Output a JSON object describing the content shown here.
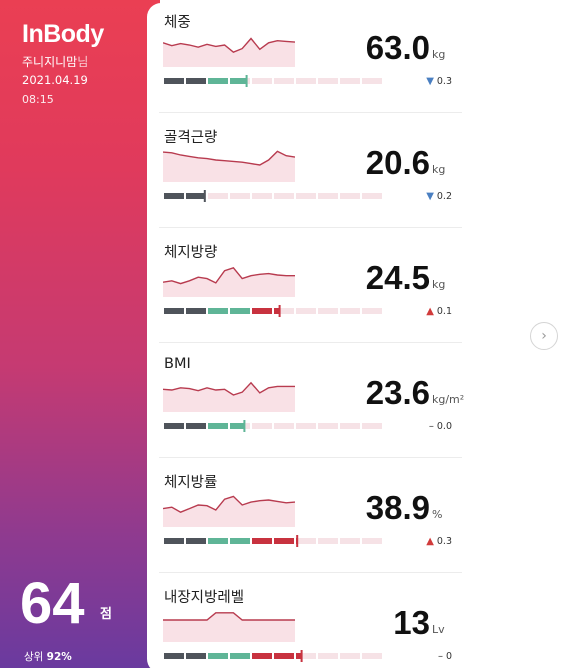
{
  "sidebar": {
    "logo": "InBody",
    "user_name": "주니지니맘",
    "user_honorific": "님",
    "date": "2021.04.19",
    "time": "08:15",
    "score": "64",
    "score_unit": "점",
    "rank_label": "상위",
    "rank_value": "92%"
  },
  "colors": {
    "good": "#5fb597",
    "warn": "#c8323f",
    "base": "#4f545b",
    "track": "#f6e2e6",
    "down_arrow": "#4a7fc1",
    "up_arrow": "#d13b3b",
    "spark_line": "#b83b4f",
    "spark_fill": "#f9e1e6"
  },
  "metrics": [
    {
      "title": "체중",
      "value": "63.0",
      "unit": "kg",
      "delta_dir": "down",
      "delta": "0.3",
      "level": 0.38,
      "trend": [
        56,
        48,
        54,
        50,
        44,
        52,
        46,
        50,
        30,
        40,
        68,
        38,
        56,
        62,
        60,
        58
      ]
    },
    {
      "title": "골격근량",
      "value": "20.6",
      "unit": "kg",
      "delta_dir": "down",
      "delta": "0.2",
      "level": 0.19,
      "trend": [
        72,
        70,
        64,
        60,
        56,
        54,
        50,
        48,
        46,
        44,
        40,
        36,
        50,
        74,
        62,
        58
      ]
    },
    {
      "title": "체지방량",
      "value": "24.5",
      "unit": "kg",
      "delta_dir": "up",
      "delta": "0.1",
      "level": 0.53,
      "trend": [
        30,
        34,
        26,
        34,
        44,
        40,
        28,
        62,
        70,
        40,
        48,
        52,
        54,
        50,
        48,
        48
      ]
    },
    {
      "title": "BMI",
      "value": "23.6",
      "unit": "kg/m²",
      "delta_dir": "flat",
      "delta": "0.0",
      "level": 0.37,
      "trend": [
        52,
        50,
        56,
        54,
        48,
        56,
        50,
        52,
        36,
        44,
        70,
        42,
        56,
        60,
        60,
        60
      ]
    },
    {
      "title": "체지방률",
      "value": "38.9",
      "unit": "%",
      "delta_dir": "up",
      "delta": "0.3",
      "level": 0.61,
      "trend": [
        40,
        44,
        30,
        40,
        50,
        48,
        36,
        66,
        74,
        50,
        58,
        62,
        64,
        60,
        56,
        58
      ]
    },
    {
      "title": "내장지방레벨",
      "value": "13",
      "unit": "Lv",
      "delta_dir": "flat",
      "delta": "0",
      "level": 0.63,
      "trend": [
        50,
        50,
        50,
        50,
        50,
        50,
        70,
        70,
        70,
        50,
        50,
        50,
        50,
        50,
        50,
        50
      ]
    }
  ],
  "nav": {
    "next_icon": "chevron-right-icon"
  }
}
